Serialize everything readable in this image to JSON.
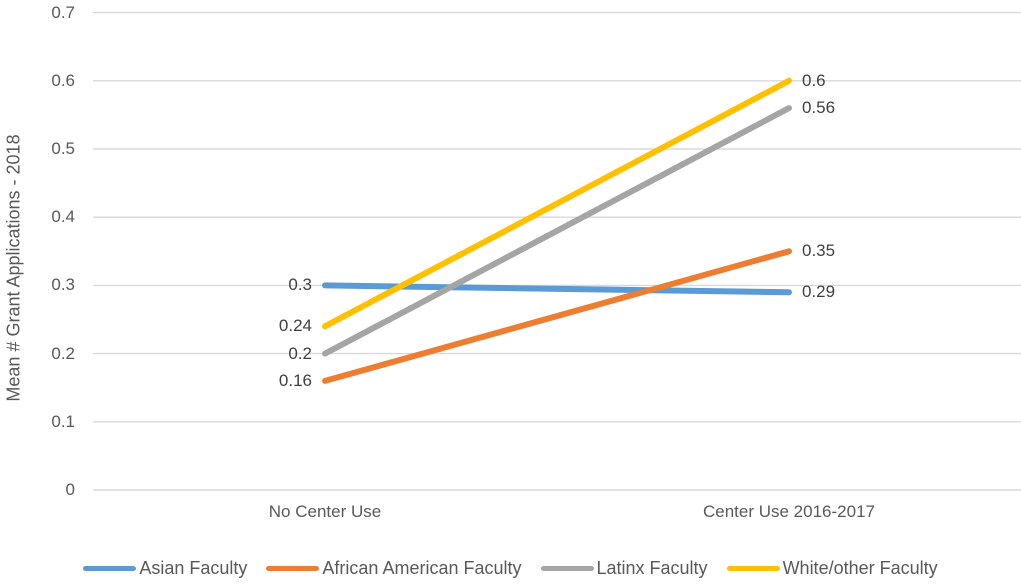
{
  "chart_data": {
    "type": "line",
    "title": "",
    "xlabel": "",
    "ylabel": "Mean # Grant Applications - 2018",
    "categories": [
      "No Center Use",
      "Center Use 2016-2017"
    ],
    "series": [
      {
        "name": "Asian Faculty",
        "color": "#5B9BD5",
        "values": [
          0.3,
          0.29
        ],
        "labels": [
          "0.3",
          "0.29"
        ]
      },
      {
        "name": "African American Faculty",
        "color": "#ED7D31",
        "values": [
          0.16,
          0.35
        ],
        "labels": [
          "0.16",
          "0.35"
        ]
      },
      {
        "name": "Latinx Faculty",
        "color": "#A5A5A5",
        "values": [
          0.2,
          0.56
        ],
        "labels": [
          "0.2",
          "0.56"
        ]
      },
      {
        "name": "White/other Faculty",
        "color": "#FFC000",
        "values": [
          0.24,
          0.6
        ],
        "labels": [
          "0.24",
          "0.6"
        ]
      }
    ],
    "yticks": [
      "0",
      "0.1",
      "0.2",
      "0.3",
      "0.4",
      "0.5",
      "0.6",
      "0.7"
    ],
    "ylim": [
      0,
      0.7
    ],
    "grid": true,
    "legend_position": "bottom"
  },
  "colors": {
    "gridline": "#D9D9D9",
    "axis_line": "#D9D9D9",
    "tick_text": "#595959",
    "label_text": "#404040"
  }
}
